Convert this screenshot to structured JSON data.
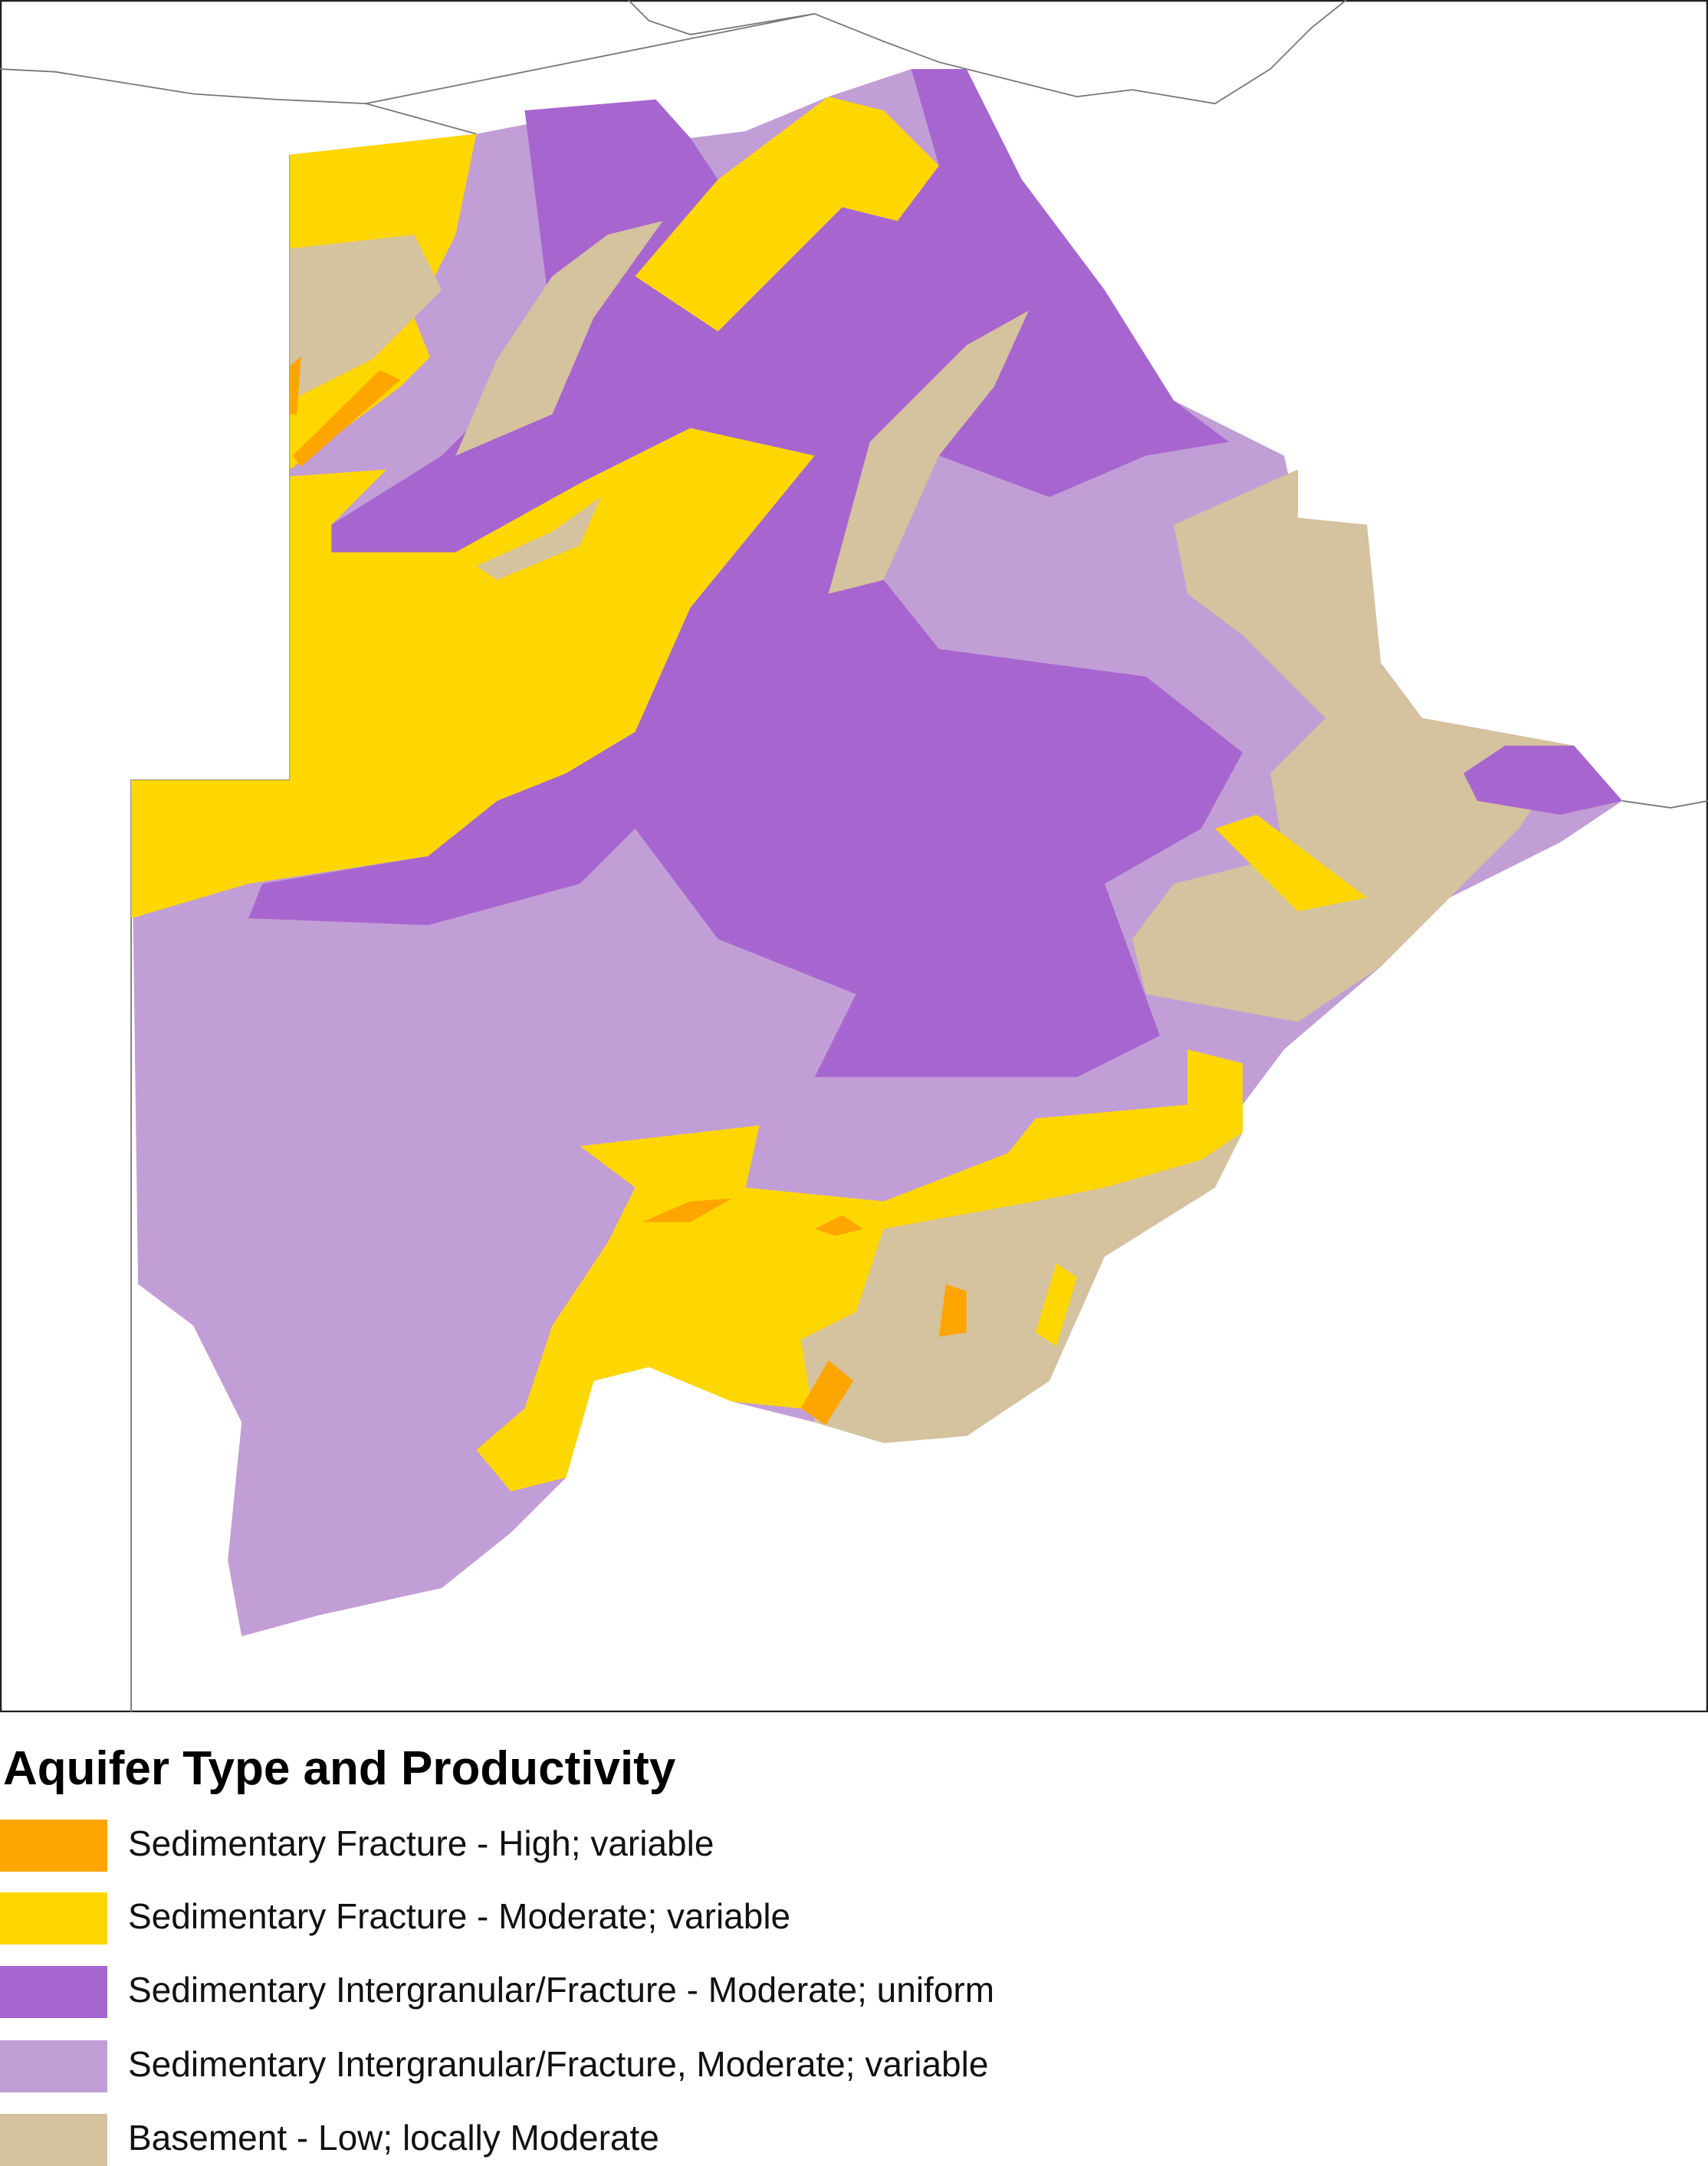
{
  "legend": {
    "title": "Aquifer Type and Productivity",
    "items": [
      {
        "label": "Sedimentary Fracture - High; variable",
        "color": "#FFA500"
      },
      {
        "label": "Sedimentary Fracture - Moderate; variable",
        "color": "#FFD700"
      },
      {
        "label": "Sedimentary Intergranular/Fracture - Moderate; uniform",
        "color": "#A766CF"
      },
      {
        "label": "Sedimentary Intergranular/Fracture, Moderate; variable",
        "color": "#C29ED6"
      },
      {
        "label": "Basement - Low; locally Moderate",
        "color": "#D5C29E"
      }
    ]
  }
}
